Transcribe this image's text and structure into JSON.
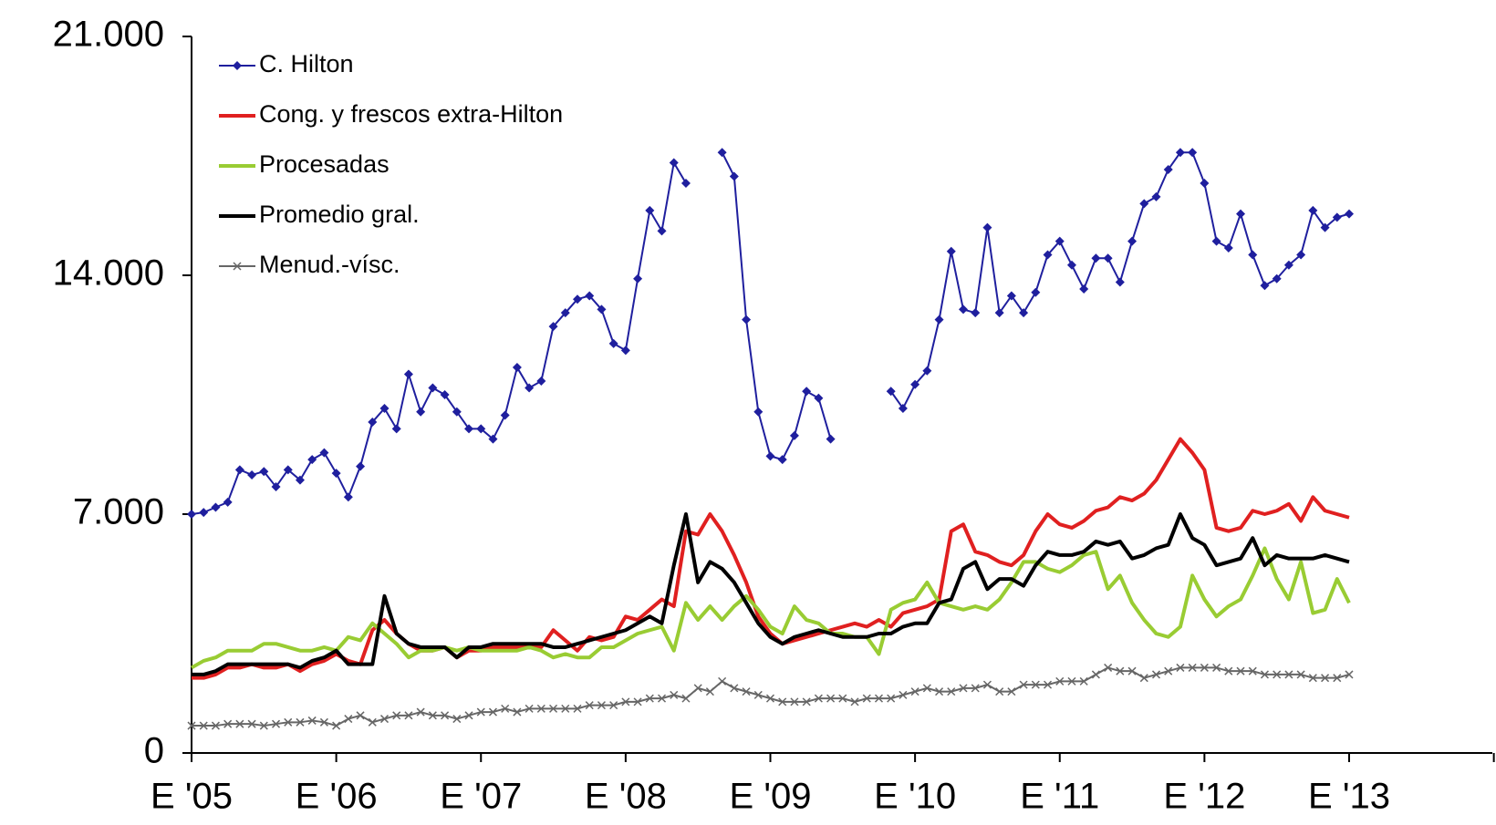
{
  "chart_data": {
    "type": "line",
    "categories": [
      "E '05",
      null,
      null,
      null,
      null,
      null,
      null,
      null,
      null,
      null,
      null,
      null,
      "E '06",
      null,
      null,
      null,
      null,
      null,
      null,
      null,
      null,
      null,
      null,
      null,
      "E '07",
      null,
      null,
      null,
      null,
      null,
      null,
      null,
      null,
      null,
      null,
      null,
      "E '08",
      null,
      null,
      null,
      null,
      null,
      null,
      null,
      null,
      null,
      null,
      null,
      "E '09",
      null,
      null,
      null,
      null,
      null,
      null,
      null,
      null,
      null,
      null,
      null,
      "E '10",
      null,
      null,
      null,
      null,
      null,
      null,
      null,
      null,
      null,
      null,
      null,
      "E '11",
      null,
      null,
      null,
      null,
      null,
      null,
      null,
      null,
      null,
      null,
      null,
      "E '12",
      null,
      null,
      null,
      null,
      null,
      null,
      null,
      null,
      null,
      null,
      null,
      "E '13"
    ],
    "ylim": [
      0,
      21000
    ],
    "yticks": [
      0,
      {
        "value": 7000,
        "label": "7.000"
      },
      {
        "value": 14000,
        "label": "14.000"
      },
      {
        "value": 21000,
        "label": "21.000"
      }
    ],
    "legend": "upper left",
    "series": [
      {
        "name": "C. Hilton",
        "color": "#1f1f9e",
        "marker": "diamond",
        "values": [
          7000,
          7050,
          7200,
          7350,
          8300,
          8150,
          8250,
          7800,
          8300,
          8000,
          8600,
          8800,
          8200,
          7500,
          8400,
          9700,
          10100,
          9500,
          11100,
          10000,
          10700,
          10500,
          10000,
          9500,
          9500,
          9200,
          9900,
          11300,
          10700,
          10900,
          12500,
          12900,
          13300,
          13400,
          13000,
          12000,
          11800,
          13900,
          15900,
          15300,
          17300,
          16700,
          null,
          null,
          17600,
          16900,
          12700,
          10000,
          8700,
          8600,
          9300,
          10600,
          10400,
          9200,
          null,
          null,
          null,
          null,
          10600,
          10100,
          10800,
          11200,
          12700,
          14700,
          13000,
          12900,
          15400,
          12900,
          13400,
          12900,
          13500,
          14600,
          15000,
          14300,
          13600,
          14500,
          14500,
          13800,
          15000,
          16100,
          16300,
          17100,
          17600,
          17600,
          16700,
          15000,
          14800,
          15800,
          14600,
          13700,
          13900,
          14300,
          14600,
          15900,
          15400,
          15700,
          15800
        ]
      },
      {
        "name": "Cong. y frescos extra-Hilton",
        "color": "#e02020",
        "marker": null,
        "values": [
          2200,
          2200,
          2300,
          2500,
          2500,
          2600,
          2500,
          2500,
          2600,
          2400,
          2600,
          2700,
          2900,
          2700,
          2600,
          3600,
          3900,
          3500,
          3200,
          3000,
          3000,
          3100,
          2800,
          3000,
          3000,
          3100,
          3100,
          3100,
          3100,
          3100,
          3600,
          3300,
          3000,
          3400,
          3300,
          3400,
          4000,
          3900,
          4200,
          4500,
          4300,
          6500,
          6400,
          7000,
          6500,
          5800,
          5000,
          4000,
          3500,
          3200,
          3300,
          3400,
          3500,
          3600,
          3700,
          3800,
          3700,
          3900,
          3700,
          4100,
          4200,
          4300,
          4500,
          6500,
          6700,
          5900,
          5800,
          5600,
          5500,
          5800,
          6500,
          7000,
          6700,
          6600,
          6800,
          7100,
          7200,
          7500,
          7400,
          7600,
          8000,
          8600,
          9200,
          8800,
          8300,
          6600,
          6500,
          6600,
          7100,
          7000,
          7100,
          7300,
          6800,
          7500,
          7100,
          7000,
          6900
        ]
      },
      {
        "name": "Procesadas",
        "color": "#99cc33",
        "marker": null,
        "values": [
          2500,
          2700,
          2800,
          3000,
          3000,
          3000,
          3200,
          3200,
          3100,
          3000,
          3000,
          3100,
          3000,
          3400,
          3300,
          3800,
          3500,
          3200,
          2800,
          3000,
          3000,
          3100,
          3000,
          3100,
          3000,
          3000,
          3000,
          3000,
          3100,
          3000,
          2800,
          2900,
          2800,
          2800,
          3100,
          3100,
          3300,
          3500,
          3600,
          3700,
          3000,
          4400,
          3900,
          4300,
          3900,
          4300,
          4600,
          4200,
          3700,
          3500,
          4300,
          3900,
          3800,
          3500,
          3500,
          3400,
          3400,
          2900,
          4200,
          4400,
          4500,
          5000,
          4400,
          4300,
          4200,
          4300,
          4200,
          4500,
          5000,
          5600,
          5600,
          5400,
          5300,
          5500,
          5800,
          5900,
          4800,
          5200,
          4400,
          3900,
          3500,
          3400,
          3700,
          5200,
          4500,
          4000,
          4300,
          4500,
          5200,
          6000,
          5100,
          4500,
          5600,
          4100,
          4200,
          5100,
          4400
        ]
      },
      {
        "name": "Promedio gral.",
        "color": "#000000",
        "marker": null,
        "values": [
          2300,
          2300,
          2400,
          2600,
          2600,
          2600,
          2600,
          2600,
          2600,
          2500,
          2700,
          2800,
          3000,
          2600,
          2600,
          2600,
          4600,
          3500,
          3200,
          3100,
          3100,
          3100,
          2800,
          3100,
          3100,
          3200,
          3200,
          3200,
          3200,
          3200,
          3100,
          3100,
          3200,
          3300,
          3400,
          3500,
          3600,
          3800,
          4000,
          3800,
          5500,
          7000,
          5000,
          5600,
          5400,
          5000,
          4400,
          3800,
          3400,
          3200,
          3400,
          3500,
          3600,
          3500,
          3400,
          3400,
          3400,
          3500,
          3500,
          3700,
          3800,
          3800,
          4400,
          4500,
          5400,
          5600,
          4800,
          5100,
          5100,
          4900,
          5500,
          5900,
          5800,
          5800,
          5900,
          6200,
          6100,
          6200,
          5700,
          5800,
          6000,
          6100,
          7000,
          6300,
          6100,
          5500,
          5600,
          5700,
          6300,
          5500,
          5800,
          5700,
          5700,
          5700,
          5800,
          5700,
          5600
        ]
      },
      {
        "name": "Menud.-vísc.",
        "color": "#666666",
        "marker": "x",
        "values": [
          800,
          800,
          800,
          850,
          850,
          850,
          800,
          850,
          900,
          900,
          950,
          900,
          800,
          1000,
          1100,
          900,
          1000,
          1100,
          1100,
          1200,
          1100,
          1100,
          1000,
          1100,
          1200,
          1200,
          1300,
          1200,
          1300,
          1300,
          1300,
          1300,
          1300,
          1400,
          1400,
          1400,
          1500,
          1500,
          1600,
          1600,
          1700,
          1600,
          1900,
          1800,
          2100,
          1900,
          1800,
          1700,
          1600,
          1500,
          1500,
          1500,
          1600,
          1600,
          1600,
          1500,
          1600,
          1600,
          1600,
          1700,
          1800,
          1900,
          1800,
          1800,
          1900,
          1900,
          2000,
          1800,
          1800,
          2000,
          2000,
          2000,
          2100,
          2100,
          2100,
          2300,
          2500,
          2400,
          2400,
          2200,
          2300,
          2400,
          2500,
          2500,
          2500,
          2500,
          2400,
          2400,
          2400,
          2300,
          2300,
          2300,
          2300,
          2200,
          2200,
          2200,
          2300
        ]
      }
    ]
  }
}
